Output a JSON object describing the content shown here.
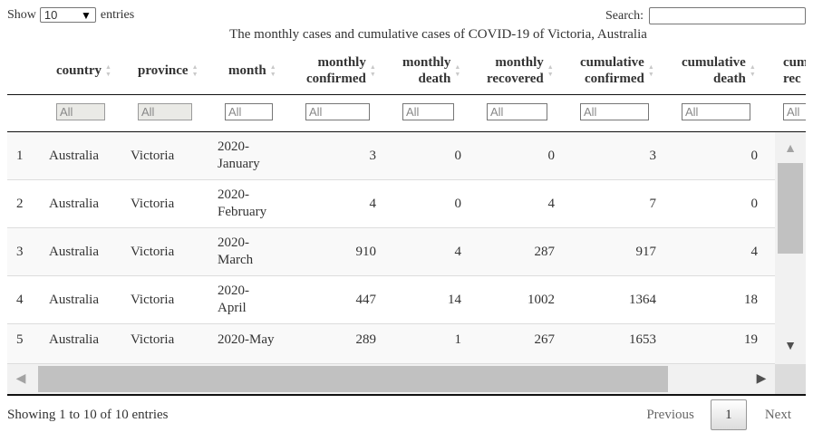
{
  "length_menu": {
    "prefix": "Show",
    "value": "10",
    "suffix": "entries"
  },
  "search": {
    "label": "Search:",
    "value": ""
  },
  "caption": "The monthly cases and cumulative cases of COVID-19 of Victoria, Australia",
  "columns": [
    {
      "key": "index",
      "label": ""
    },
    {
      "key": "country",
      "label": "country"
    },
    {
      "key": "province",
      "label": "province"
    },
    {
      "key": "month",
      "label": "month"
    },
    {
      "key": "monthly_confirmed",
      "label_1": "monthly",
      "label_2": "confirmed"
    },
    {
      "key": "monthly_death",
      "label_1": "monthly",
      "label_2": "death"
    },
    {
      "key": "monthly_recovered",
      "label_1": "monthly",
      "label_2": "recovered"
    },
    {
      "key": "cumulative_confirmed",
      "label_1": "cumulative",
      "label_2": "confirmed"
    },
    {
      "key": "cumulative_death",
      "label_1": "cumulative",
      "label_2": "death"
    },
    {
      "key": "cumulative_recovered",
      "label_1": "cum",
      "label_2": "rec"
    }
  ],
  "filters": [
    "All",
    "All",
    "All",
    "All",
    "All",
    "All",
    "All",
    "All",
    "All"
  ],
  "rows": [
    {
      "index": "1",
      "country": "Australia",
      "province": "Victoria",
      "month_1": "2020-",
      "month_2": "January",
      "mc": "3",
      "md": "0",
      "mr": "0",
      "cc": "3",
      "cd": "0"
    },
    {
      "index": "2",
      "country": "Australia",
      "province": "Victoria",
      "month_1": "2020-",
      "month_2": "February",
      "mc": "4",
      "md": "0",
      "mr": "4",
      "cc": "7",
      "cd": "0"
    },
    {
      "index": "3",
      "country": "Australia",
      "province": "Victoria",
      "month_1": "2020-",
      "month_2": "March",
      "mc": "910",
      "md": "4",
      "mr": "287",
      "cc": "917",
      "cd": "4"
    },
    {
      "index": "4",
      "country": "Australia",
      "province": "Victoria",
      "month_1": "2020-",
      "month_2": "April",
      "mc": "447",
      "md": "14",
      "mr": "1002",
      "cc": "1364",
      "cd": "18"
    },
    {
      "index": "5",
      "country": "Australia",
      "province": "Victoria",
      "month_1": "2020-May",
      "month_2": "",
      "mc": "289",
      "md": "1",
      "mr": "267",
      "cc": "1653",
      "cd": "19"
    }
  ],
  "info": "Showing 1 to 10 of 10 entries",
  "pager": {
    "previous": "Previous",
    "current": "1",
    "next": "Next"
  },
  "icons": {
    "sort": "sort-arrows-icon",
    "dropdown": "caret-down-icon",
    "scroll_up": "triangle-up-icon",
    "scroll_down": "triangle-down-icon",
    "scroll_left": "triangle-left-icon",
    "scroll_right": "triangle-right-icon"
  }
}
